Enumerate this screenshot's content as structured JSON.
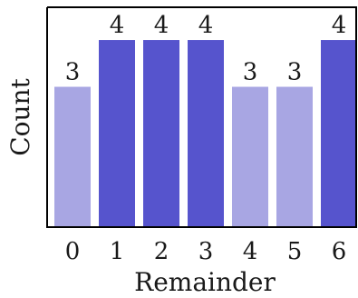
{
  "chart_data": {
    "type": "bar",
    "categories": [
      "0",
      "1",
      "2",
      "3",
      "4",
      "5",
      "6"
    ],
    "values": [
      3,
      4,
      4,
      4,
      3,
      3,
      4
    ],
    "value_labels": [
      "3",
      "4",
      "4",
      "4",
      "3",
      "3",
      "4"
    ],
    "xlabel": "Remainder",
    "ylabel": "Count",
    "ylim": [
      0,
      4.7
    ],
    "grid": false,
    "legend": "none",
    "colors": {
      "value_3": "#a8a6e3",
      "value_4": "#5654cd"
    }
  }
}
